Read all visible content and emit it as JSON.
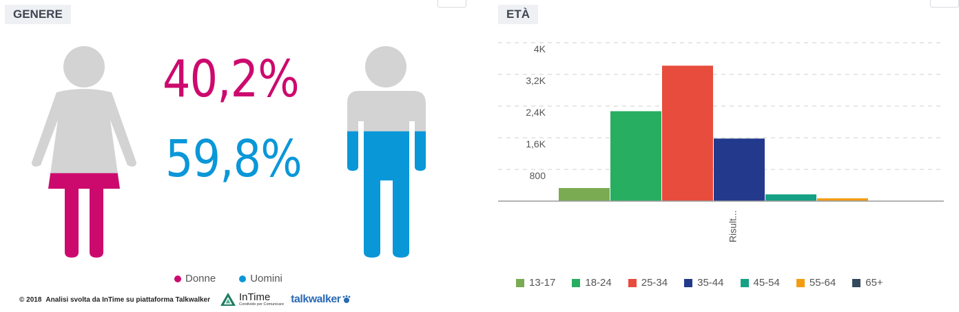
{
  "gender": {
    "title": "GENERE",
    "women_pct": "40,2%",
    "men_pct": "59,8%",
    "women_share": 0.402,
    "men_share": 0.598,
    "legend": [
      {
        "label": "Donne",
        "color": "#cc0a6e"
      },
      {
        "label": "Uomini",
        "color": "#0a97d8"
      }
    ],
    "colors": {
      "women": "#cc0a6e",
      "men": "#0a97d8",
      "empty": "#d3d3d3"
    }
  },
  "age": {
    "title": "ETÀ"
  },
  "footer": {
    "copyright": "© 2018",
    "credit": "Analisi svolta da InTime su piattaforma Talkwalker",
    "intime_name": "InTime",
    "intime_tagline": "Condivido per Comunicare",
    "talkwalker": "talkwalker"
  },
  "chart_data": {
    "type": "bar",
    "title": "ETÀ",
    "categories": [
      "Risult..."
    ],
    "series": [
      {
        "name": "13-17",
        "values": [
          330
        ],
        "color": "#7aab52"
      },
      {
        "name": "18-24",
        "values": [
          2270
        ],
        "color": "#27ae60"
      },
      {
        "name": "25-34",
        "values": [
          3420
        ],
        "color": "#e74c3c"
      },
      {
        "name": "35-44",
        "values": [
          1580
        ],
        "color": "#233a8c"
      },
      {
        "name": "45-54",
        "values": [
          170
        ],
        "color": "#16a085"
      },
      {
        "name": "55-64",
        "values": [
          70
        ],
        "color": "#f39c12"
      },
      {
        "name": "65+",
        "values": [
          0
        ],
        "color": "#34495e"
      }
    ],
    "yticks": [
      {
        "value": 800,
        "label": "800"
      },
      {
        "value": 1600,
        "label": "1,6K"
      },
      {
        "value": 2400,
        "label": "2,4K"
      },
      {
        "value": 3200,
        "label": "3,2K"
      },
      {
        "value": 4000,
        "label": "4K"
      }
    ],
    "ylim": [
      0,
      4000
    ],
    "grid": true,
    "legend_position": "bottom"
  }
}
